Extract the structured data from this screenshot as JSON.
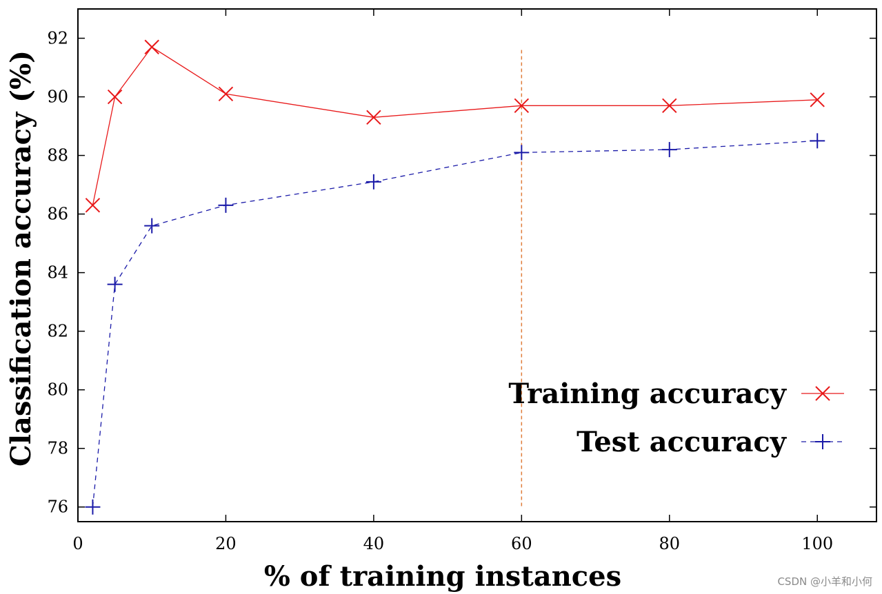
{
  "chart_data": {
    "type": "line",
    "xlabel": "% of training instances",
    "ylabel": "Classification accuracy (%)",
    "xlim": [
      0,
      108
    ],
    "ylim": [
      75.5,
      93
    ],
    "xticks": [
      0,
      20,
      40,
      60,
      80,
      100
    ],
    "yticks": [
      76,
      78,
      80,
      82,
      84,
      86,
      88,
      90,
      92
    ],
    "grid": false,
    "legend_position": "bottom-right",
    "reference_line": {
      "orientation": "vertical",
      "x": 60,
      "y_from": 76,
      "y_to": 91.6,
      "style": "dashed",
      "color": "#e07b39"
    },
    "series": [
      {
        "name": "Training accuracy",
        "color": "#e8191a",
        "marker": "x",
        "line_style": "solid",
        "x": [
          2,
          5,
          10,
          20,
          40,
          60,
          80,
          100
        ],
        "y": [
          86.3,
          90.0,
          91.7,
          90.1,
          89.3,
          89.7,
          89.7,
          89.9
        ]
      },
      {
        "name": "Test accuracy",
        "color": "#1a1aa8",
        "marker": "+",
        "line_style": "dashed",
        "x": [
          2,
          5,
          10,
          20,
          40,
          60,
          80,
          100
        ],
        "y": [
          76.0,
          83.6,
          85.6,
          86.3,
          87.1,
          88.1,
          88.2,
          88.5
        ]
      }
    ]
  },
  "watermark": "CSDN @小羊和小何"
}
